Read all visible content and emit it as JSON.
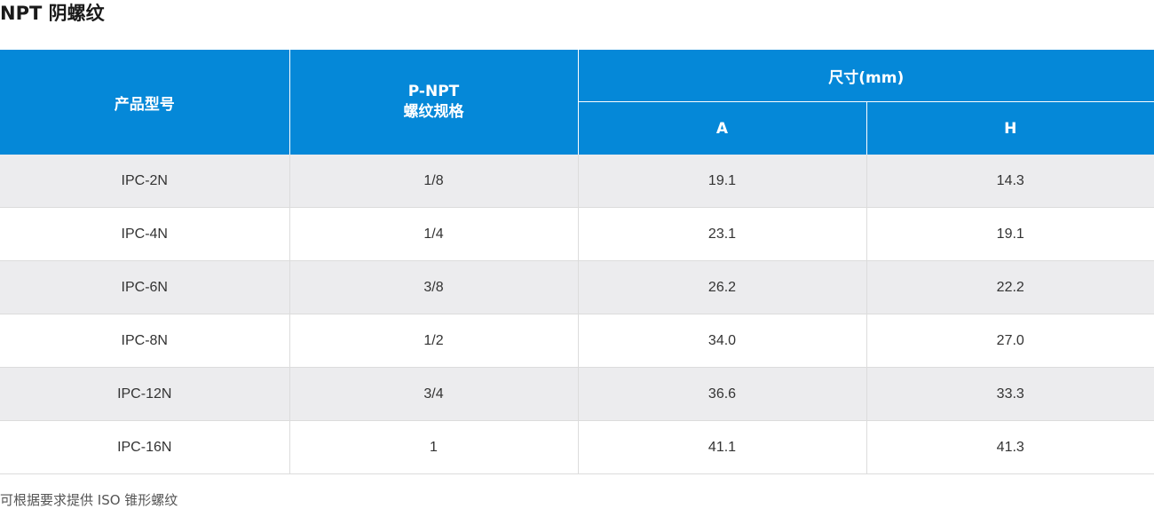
{
  "title": "NPT 阴螺纹",
  "table": {
    "header": {
      "model": "产品型号",
      "thread_line1": "P-NPT",
      "thread_line2": "螺纹规格",
      "dimensions": "尺寸(mm)",
      "col_a": "A",
      "col_h": "H"
    },
    "rows": [
      {
        "model": "IPC-2N",
        "thread": "1/8",
        "a": "19.1",
        "h": "14.3"
      },
      {
        "model": "IPC-4N",
        "thread": "1/4",
        "a": "23.1",
        "h": "19.1"
      },
      {
        "model": "IPC-6N",
        "thread": "3/8",
        "a": "26.2",
        "h": "22.2"
      },
      {
        "model": "IPC-8N",
        "thread": "1/2",
        "a": "34.0",
        "h": "27.0"
      },
      {
        "model": "IPC-12N",
        "thread": "3/4",
        "a": "36.6",
        "h": "33.3"
      },
      {
        "model": "IPC-16N",
        "thread": "1",
        "a": "41.1",
        "h": "41.3"
      }
    ]
  },
  "note": "可根据要求提供 ISO 锥形螺纹",
  "colors": {
    "header_bg": "#0588d8",
    "stripe_bg": "#ececee"
  }
}
